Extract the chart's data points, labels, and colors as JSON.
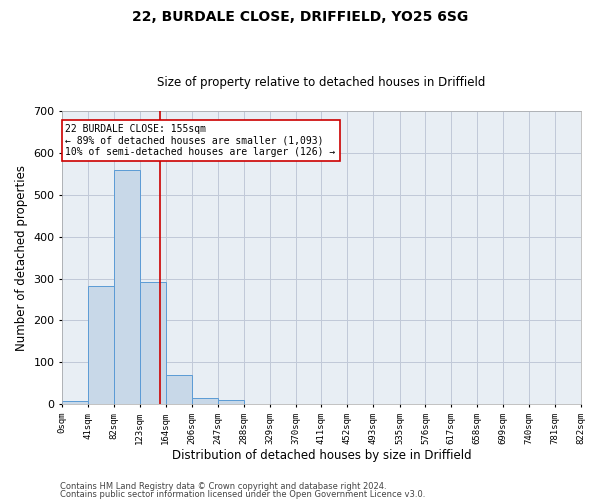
{
  "title1": "22, BURDALE CLOSE, DRIFFIELD, YO25 6SG",
  "title2": "Size of property relative to detached houses in Driffield",
  "xlabel": "Distribution of detached houses by size in Driffield",
  "ylabel": "Number of detached properties",
  "footer1": "Contains HM Land Registry data © Crown copyright and database right 2024.",
  "footer2": "Contains public sector information licensed under the Open Government Licence v3.0.",
  "annotation_line1": "22 BURDALE CLOSE: 155sqm",
  "annotation_line2": "← 89% of detached houses are smaller (1,093)",
  "annotation_line3": "10% of semi-detached houses are larger (126) →",
  "property_size": 155,
  "bar_edges": [
    0,
    41,
    82,
    123,
    164,
    206,
    247,
    288,
    329,
    370,
    411,
    452,
    493,
    535,
    576,
    617,
    658,
    699,
    740,
    781,
    822
  ],
  "bar_heights": [
    8,
    283,
    560,
    293,
    70,
    14,
    10,
    0,
    0,
    0,
    0,
    0,
    0,
    0,
    0,
    0,
    0,
    0,
    0,
    0
  ],
  "bar_color": "#c8d8e8",
  "bar_edge_color": "#5b9bd5",
  "vline_color": "#cc0000",
  "vline_x": 155,
  "annotation_box_edge_color": "#cc0000",
  "grid_color": "#c0c8d8",
  "background_color": "#e8eef4",
  "ylim": [
    0,
    700
  ],
  "xlim": [
    0,
    822
  ],
  "xtick_labels": [
    "0sqm",
    "41sqm",
    "82sqm",
    "123sqm",
    "164sqm",
    "206sqm",
    "247sqm",
    "288sqm",
    "329sqm",
    "370sqm",
    "411sqm",
    "452sqm",
    "493sqm",
    "535sqm",
    "576sqm",
    "617sqm",
    "658sqm",
    "699sqm",
    "740sqm",
    "781sqm",
    "822sqm"
  ],
  "ytick_values": [
    0,
    100,
    200,
    300,
    400,
    500,
    600,
    700
  ],
  "title1_fontsize": 10,
  "title2_fontsize": 8.5,
  "xlabel_fontsize": 8.5,
  "ylabel_fontsize": 8.5,
  "xtick_fontsize": 6.5,
  "ytick_fontsize": 8,
  "footer_fontsize": 6,
  "annotation_fontsize": 7
}
